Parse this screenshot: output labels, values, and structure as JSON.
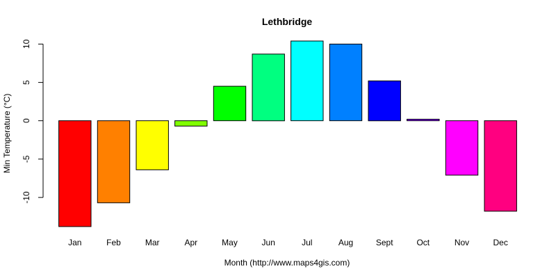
{
  "chart_data": {
    "type": "bar",
    "title": "Lethbridge",
    "xlabel": "Month (http://www.maps4gis.com)",
    "ylabel": "Min Temperature (°C)",
    "categories": [
      "Jan",
      "Feb",
      "Mar",
      "Apr",
      "May",
      "Jun",
      "Jul",
      "Aug",
      "Sept",
      "Oct",
      "Nov",
      "Dec"
    ],
    "values": [
      -13.8,
      -10.7,
      -6.4,
      -0.7,
      4.5,
      8.7,
      10.4,
      10.0,
      5.2,
      0.2,
      -7.1,
      -11.8
    ],
    "colors": [
      "#FF0000",
      "#FF8000",
      "#FFFF00",
      "#80FF00",
      "#00FF00",
      "#00FF80",
      "#00FFFF",
      "#0080FF",
      "#0000FF",
      "#8000FF",
      "#FF00FF",
      "#FF0080"
    ],
    "yticks": [
      -10,
      -5,
      0,
      5,
      10
    ],
    "ylim": [
      -13.8,
      10.4
    ],
    "grid": false,
    "legend": "none"
  }
}
